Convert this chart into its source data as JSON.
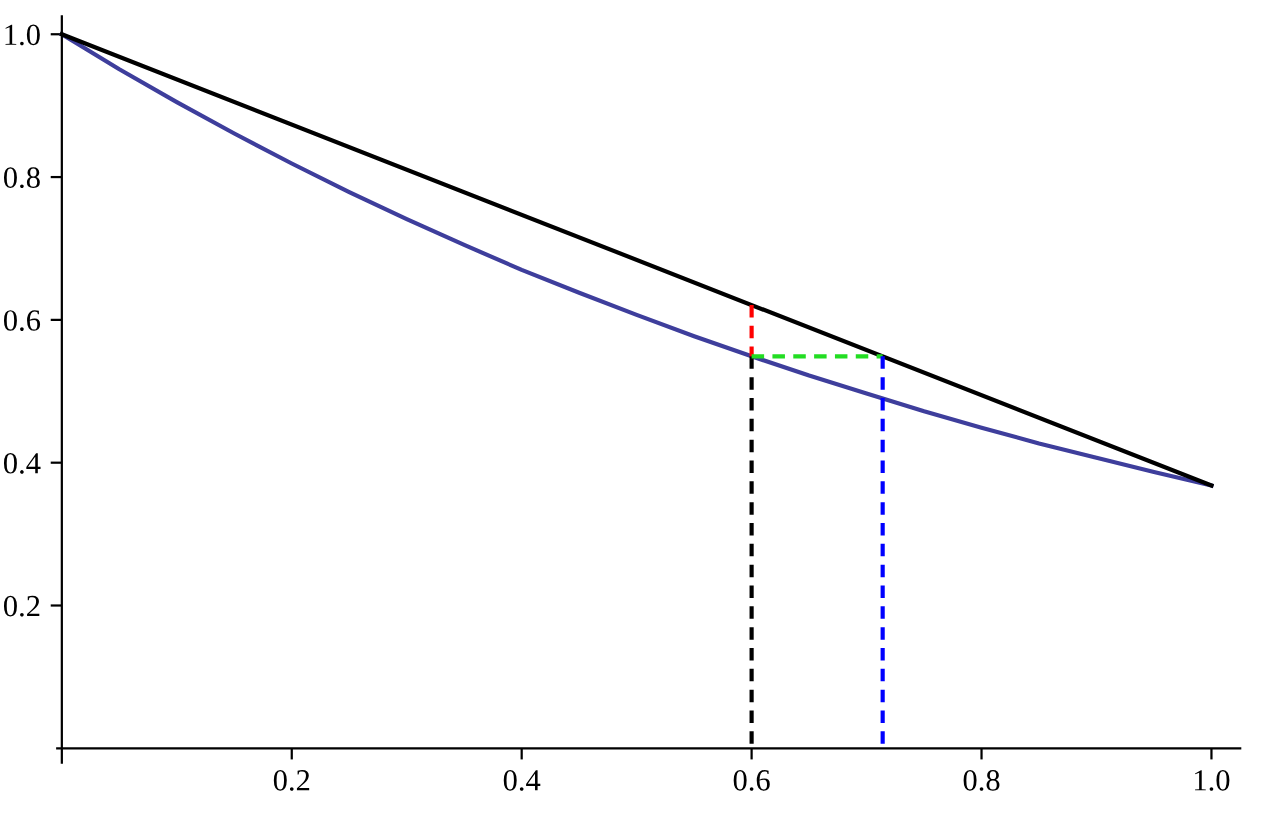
{
  "chart_data": {
    "type": "line",
    "xlim": [
      -0.004,
      1.025
    ],
    "ylim": [
      -0.02,
      1.025
    ],
    "xticks": [
      0.2,
      0.4,
      0.6,
      0.8,
      {
        "value": 1,
        "label": "1.0"
      }
    ],
    "yticks": [
      0.2,
      0.4,
      0.6,
      0.8,
      {
        "value": 1,
        "label": "1.0"
      }
    ],
    "grid": false,
    "marker": "none",
    "series": [
      {
        "color": "#3e3e9c",
        "x": [
          0,
          0.05,
          0.1,
          0.15,
          0.2,
          0.25,
          0.3,
          0.35,
          0.4,
          0.45,
          0.5,
          0.55,
          0.6,
          0.65,
          0.7,
          0.75,
          0.8,
          0.85,
          0.9,
          0.95,
          1.0
        ],
        "values": [
          1.0,
          0.951,
          0.905,
          0.861,
          0.819,
          0.779,
          0.741,
          0.705,
          0.67,
          0.638,
          0.607,
          0.577,
          0.549,
          0.522,
          0.497,
          0.472,
          0.449,
          0.427,
          0.407,
          0.387,
          0.368
        ]
      },
      {
        "color": "#000000",
        "x": [
          0,
          1.0
        ],
        "values": [
          1.0,
          0.368
        ]
      },
      {
        "color": "#000000",
        "line_style": "dashed",
        "x": [
          0.6,
          0.6
        ],
        "values": [
          0.549,
          0
        ]
      },
      {
        "color": "#ff0000",
        "line_style": "dashed",
        "x": [
          0.6,
          0.6
        ],
        "values": [
          0.621,
          0.549
        ]
      },
      {
        "color": "#22dd22",
        "line_style": "dashed",
        "x": [
          0.6,
          0.714
        ],
        "values": [
          0.549,
          0.549
        ]
      },
      {
        "color": "#0000ff",
        "line_style": "dashed",
        "x": [
          0.714,
          0.714
        ],
        "values": [
          0.549,
          0
        ]
      }
    ]
  }
}
